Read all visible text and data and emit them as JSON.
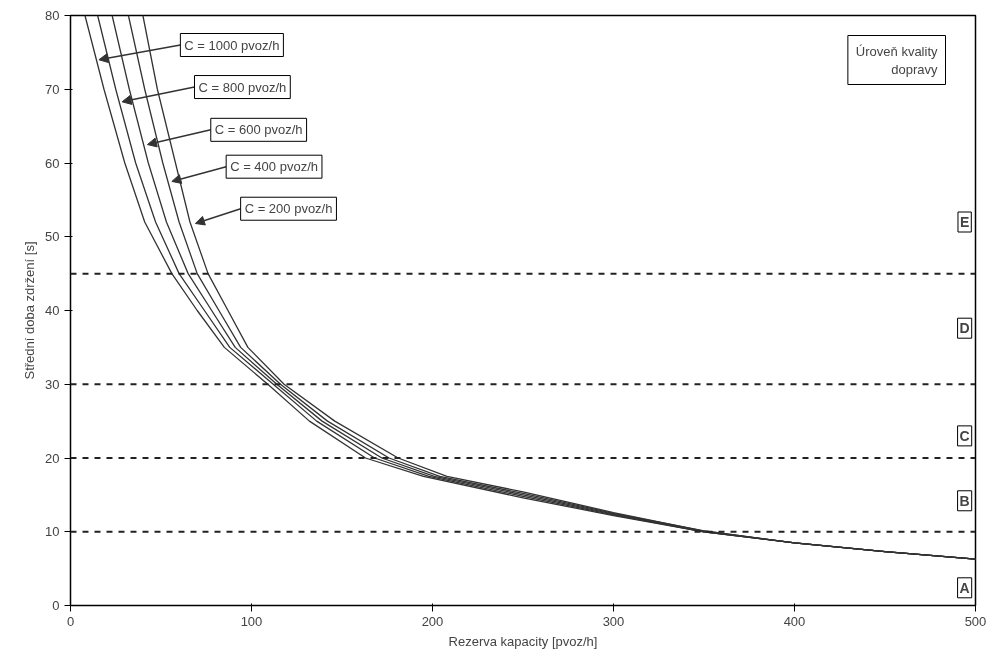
{
  "chart_data": {
    "type": "line",
    "xlabel": "Rezerva kapacity [pvoz/h]",
    "ylabel": "Střední doba zdržení [s]",
    "xlim": [
      0,
      500
    ],
    "ylim": [
      0,
      80
    ],
    "xticks": [
      0,
      100,
      200,
      300,
      400,
      500
    ],
    "yticks": [
      0,
      10,
      20,
      30,
      40,
      50,
      60,
      70,
      80
    ],
    "grid": false,
    "marker": "none",
    "line_style": "solid",
    "series": [
      {
        "color": "#333333",
        "x": [
          8,
          18.5,
          30,
          41,
          56,
          70,
          85,
          109,
          132,
          163,
          195,
          250,
          300,
          350,
          400,
          450,
          500
        ],
        "values": [
          80,
          70,
          60,
          52,
          45,
          40,
          35,
          30,
          25,
          20,
          17.5,
          14.6,
          12.2,
          10,
          8.5,
          7.3,
          6.3
        ]
      },
      {
        "color": "#333333",
        "x": [
          15,
          25,
          36,
          47,
          60,
          74,
          88,
          112,
          136,
          168,
          198,
          250,
          300,
          350,
          400,
          450,
          500
        ],
        "values": [
          80,
          70,
          60,
          52,
          45,
          40,
          35,
          30,
          25,
          20,
          17.5,
          14.8,
          12.3,
          10,
          8.5,
          7.3,
          6.3
        ]
      },
      {
        "color": "#333333",
        "x": [
          23,
          32.5,
          43,
          53,
          65,
          78,
          91,
          114,
          139,
          172,
          201,
          250,
          300,
          350,
          400,
          450,
          500
        ],
        "values": [
          80,
          70,
          60,
          52,
          45,
          40,
          35,
          30,
          25,
          20,
          17.5,
          15,
          12.4,
          10,
          8.5,
          7.3,
          6.3
        ]
      },
      {
        "color": "#333333",
        "x": [
          32,
          41,
          51,
          60,
          70,
          82,
          94,
          116,
          142,
          176,
          204,
          250,
          300,
          350,
          400,
          450,
          500
        ],
        "values": [
          80,
          70,
          60,
          52,
          45,
          40,
          35,
          30,
          25,
          20,
          17.5,
          15.2,
          12.5,
          10.1,
          8.5,
          7.3,
          6.3
        ]
      },
      {
        "color": "#333333",
        "x": [
          40,
          48,
          58,
          66,
          76,
          87,
          98,
          118,
          146,
          181,
          208,
          250,
          300,
          350,
          400,
          450,
          500
        ],
        "values": [
          80,
          70,
          60,
          52,
          45,
          40,
          35,
          30,
          25,
          20,
          17.5,
          15.4,
          12.6,
          10.1,
          8.5,
          7.3,
          6.3
        ]
      }
    ],
    "ref_lines": [
      {
        "axis": "y",
        "value": 45,
        "color": "#222222",
        "line_style": "dashed"
      },
      {
        "axis": "y",
        "value": 30,
        "color": "#222222",
        "line_style": "dashed"
      },
      {
        "axis": "y",
        "value": 20,
        "color": "#222222",
        "line_style": "dashed"
      },
      {
        "axis": "y",
        "value": 10,
        "color": "#222222",
        "line_style": "dashed"
      }
    ],
    "annotations": [
      {
        "text": "C = 1000 pvoz/h",
        "x": 15.7,
        "y": 74
      },
      {
        "text": "C = 800 pvoz/h",
        "x": 28.5,
        "y": 68.3
      },
      {
        "text": "C = 600 pvoz/h",
        "x": 42.5,
        "y": 62.5
      },
      {
        "text": "C = 400 pvoz/h",
        "x": 56,
        "y": 57.5
      },
      {
        "text": "C = 200 pvoz/h",
        "x": 69,
        "y": 51.8
      },
      "Úroveň kvality dopravy",
      {
        "text": "E",
        "x": 494,
        "y": 52
      },
      {
        "text": "D",
        "x": 494,
        "y": 37.6
      },
      {
        "text": "C",
        "x": 494,
        "y": 23
      },
      {
        "text": "B",
        "x": 494,
        "y": 14.2
      },
      {
        "text": "A",
        "x": 494,
        "y": 2.4
      }
    ]
  }
}
